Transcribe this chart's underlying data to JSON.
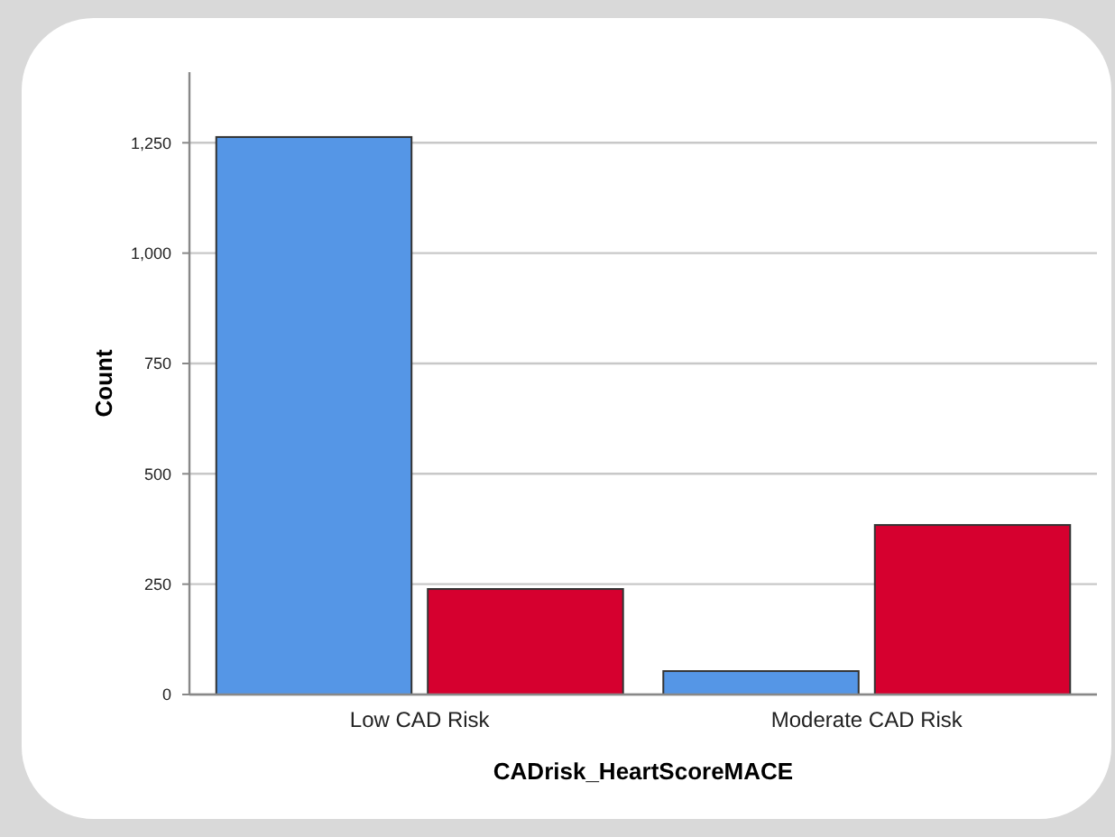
{
  "chart_data": {
    "type": "bar",
    "xlabel": "CADrisk_HeartScoreMACE",
    "ylabel": "Count",
    "categories": [
      "Low CAD Risk",
      "Moderate CAD Risk"
    ],
    "series": [
      {
        "color": "#5596e6",
        "values": [
          1263,
          53
        ]
      },
      {
        "color": "#d6002f",
        "values": [
          239,
          384
        ]
      }
    ],
    "ylim": [
      0,
      1410
    ],
    "yticks": [
      0,
      250,
      500,
      750,
      {
        "value": 1000,
        "label": "1,000"
      },
      {
        "value": 1250,
        "label": "1,250"
      }
    ],
    "grid": "y"
  }
}
